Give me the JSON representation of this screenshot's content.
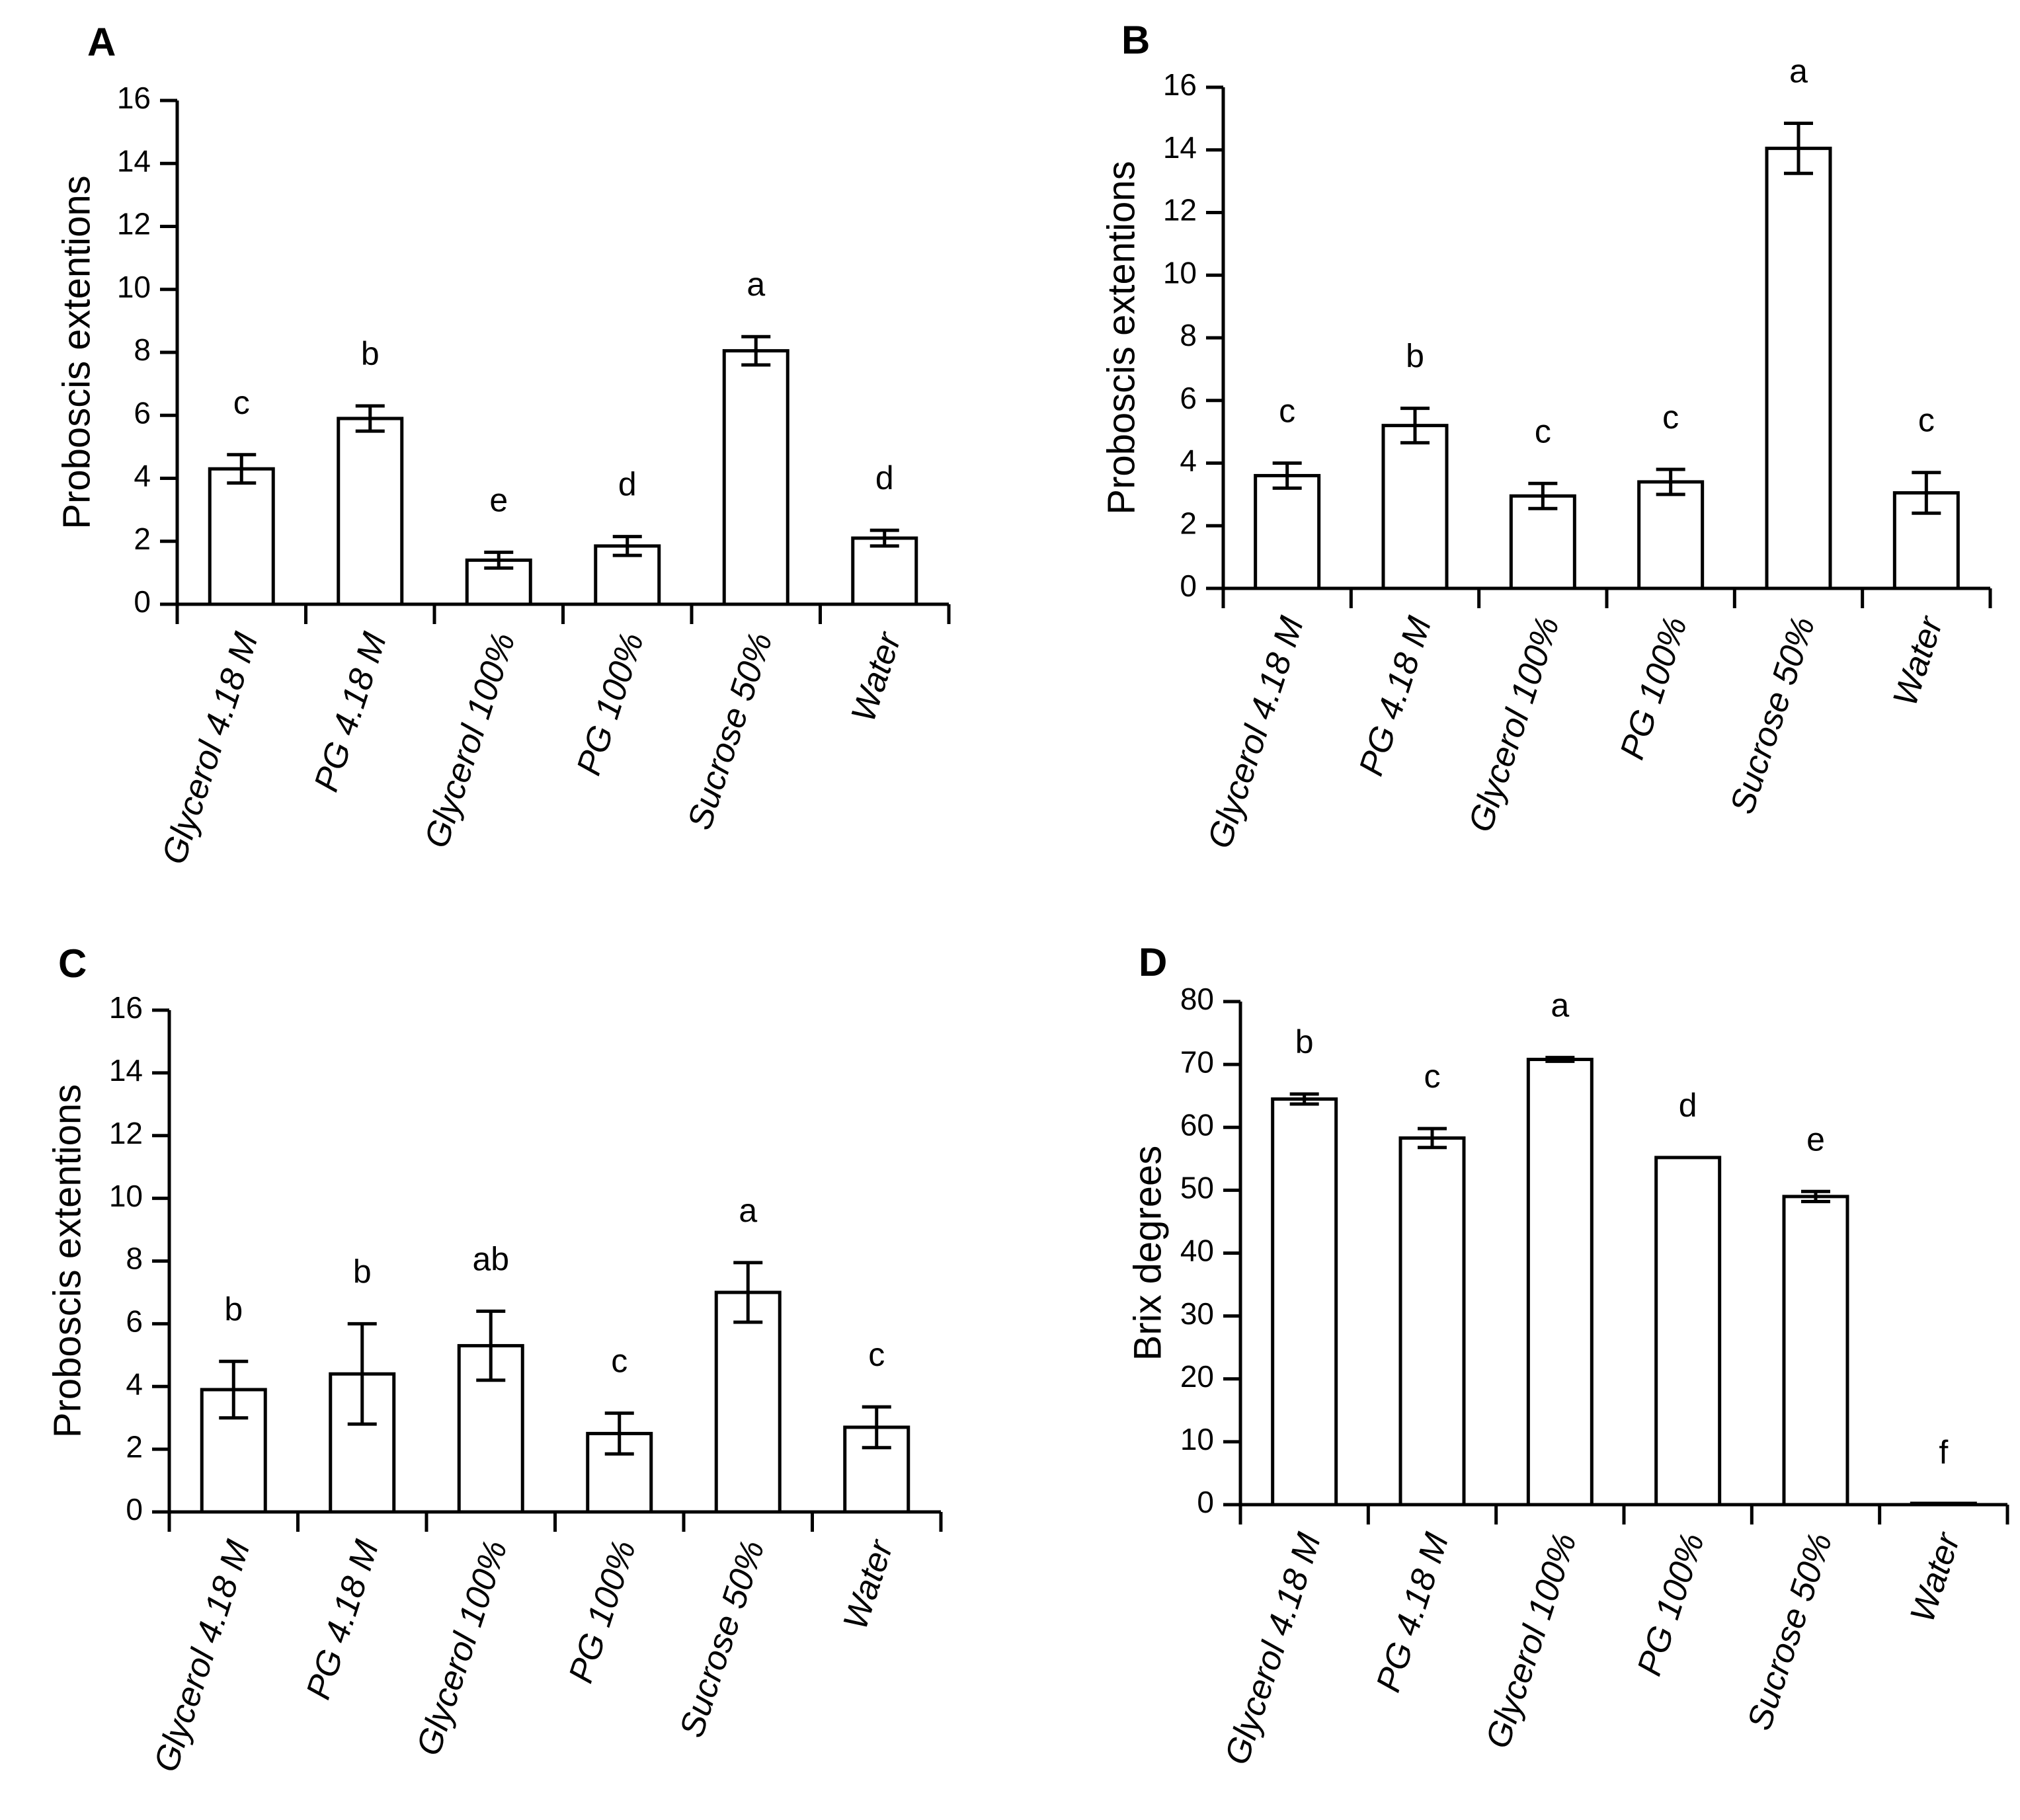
{
  "chart_data": [
    {
      "panel": "A",
      "type": "bar",
      "ylabel": "Proboscis extentions",
      "ylim": [
        0,
        16
      ],
      "yticks": [
        "0",
        "2",
        "4",
        "6",
        "8",
        "10",
        "12",
        "14",
        "16"
      ],
      "categories": [
        "Glycerol 4.18 M",
        "PG 4.18 M",
        "Glycerol 100%",
        "PG 100%",
        "Sucrose 50%",
        "Water"
      ],
      "values": [
        4.3,
        5.9,
        1.4,
        1.85,
        8.05,
        2.1
      ],
      "errors": [
        0.45,
        0.4,
        0.25,
        0.3,
        0.45,
        0.25
      ],
      "significance": [
        "c",
        "b",
        "e",
        "d",
        "a",
        "d"
      ]
    },
    {
      "panel": "B",
      "type": "bar",
      "ylabel": "Proboscis extentions",
      "ylim": [
        0,
        16
      ],
      "yticks": [
        "0",
        "2",
        "4",
        "6",
        "8",
        "10",
        "12",
        "14",
        "16"
      ],
      "categories": [
        "Glycerol 4.18 M",
        "PG 4.18 M",
        "Glycerol 100%",
        "PG 100%",
        "Sucrose 50%",
        "Water"
      ],
      "values": [
        3.6,
        5.2,
        2.95,
        3.4,
        14.05,
        3.05
      ],
      "errors": [
        0.4,
        0.55,
        0.4,
        0.4,
        0.8,
        0.65
      ],
      "significance": [
        "c",
        "b",
        "c",
        "c",
        "a",
        "c"
      ]
    },
    {
      "panel": "C",
      "type": "bar",
      "ylabel": "Proboscis extentions",
      "ylim": [
        0,
        16
      ],
      "yticks": [
        "0",
        "2",
        "4",
        "6",
        "8",
        "10",
        "12",
        "14",
        "16"
      ],
      "categories": [
        "Glycerol 4.18 M",
        "PG 4.18 M",
        "Glycerol 100%",
        "PG 100%",
        "Sucrose 50%",
        "Water"
      ],
      "values": [
        3.9,
        4.4,
        5.3,
        2.5,
        7.0,
        2.7
      ],
      "errors": [
        0.9,
        1.6,
        1.1,
        0.65,
        0.95,
        0.65
      ],
      "significance": [
        "b",
        "b",
        "ab",
        "c",
        "a",
        "c"
      ]
    },
    {
      "panel": "D",
      "type": "bar",
      "ylabel": "Brix degrees",
      "ylim": [
        0,
        80
      ],
      "yticks": [
        "0",
        "10",
        "20",
        "30",
        "40",
        "50",
        "60",
        "70",
        "80"
      ],
      "categories": [
        "Glycerol 4.18 M",
        "PG 4.18 M",
        "Glycerol 100%",
        "PG 100%",
        "Sucrose 50%",
        "Water"
      ],
      "values": [
        64.5,
        58.3,
        70.8,
        55.2,
        49.0,
        0
      ],
      "errors": [
        0.8,
        1.5,
        0.3,
        0,
        0.8,
        0
      ],
      "significance": [
        "b",
        "c",
        "a",
        "d",
        "e",
        "f"
      ]
    }
  ]
}
